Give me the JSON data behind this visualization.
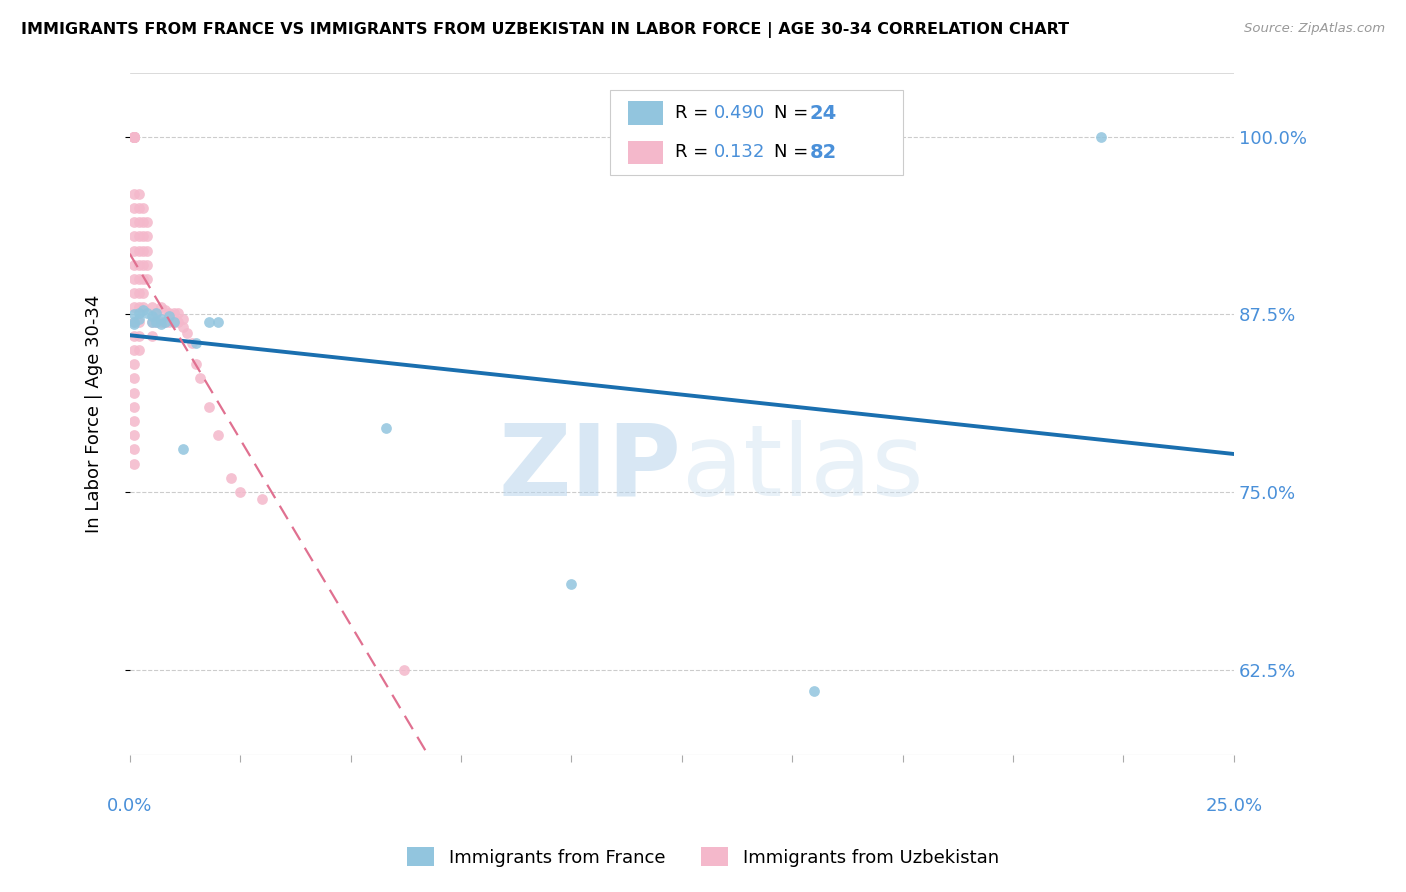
{
  "title": "IMMIGRANTS FROM FRANCE VS IMMIGRANTS FROM UZBEKISTAN IN LABOR FORCE | AGE 30-34 CORRELATION CHART",
  "source": "Source: ZipAtlas.com",
  "ylabel": "In Labor Force | Age 30-34",
  "ytick_vals": [
    0.625,
    0.75,
    0.875,
    1.0
  ],
  "ytick_labels": [
    "62.5%",
    "75.0%",
    "87.5%",
    "100.0%"
  ],
  "xlim": [
    0,
    0.25
  ],
  "ylim": [
    0.565,
    1.045
  ],
  "france_R": 0.49,
  "france_N": 24,
  "uzbekistan_R": 0.132,
  "uzbekistan_N": 82,
  "france_color": "#92c5de",
  "uzbekistan_color": "#f4b8cb",
  "france_line_color": "#1a6faf",
  "uzbekistan_line_color": "#e07090",
  "blue_label_color": "#4a90d9",
  "watermark_color": "#cde4f5",
  "france_x": [
    0.001,
    0.001,
    0.001,
    0.002,
    0.002,
    0.003,
    0.004,
    0.005,
    0.005,
    0.006,
    0.006,
    0.007,
    0.007,
    0.008,
    0.009,
    0.01,
    0.012,
    0.015,
    0.018,
    0.02,
    0.058,
    0.1,
    0.155,
    0.22
  ],
  "france_y": [
    0.875,
    0.87,
    0.868,
    0.876,
    0.872,
    0.878,
    0.876,
    0.874,
    0.87,
    0.876,
    0.87,
    0.868,
    0.872,
    0.87,
    0.874,
    0.87,
    0.78,
    0.855,
    0.87,
    0.87,
    0.795,
    0.685,
    0.61,
    1.0
  ],
  "uzbekistan_x": [
    0.001,
    0.001,
    0.001,
    0.001,
    0.001,
    0.001,
    0.001,
    0.001,
    0.001,
    0.001,
    0.001,
    0.001,
    0.001,
    0.001,
    0.001,
    0.001,
    0.001,
    0.001,
    0.001,
    0.001,
    0.001,
    0.001,
    0.001,
    0.001,
    0.001,
    0.001,
    0.001,
    0.001,
    0.001,
    0.001,
    0.002,
    0.002,
    0.002,
    0.002,
    0.002,
    0.002,
    0.002,
    0.002,
    0.002,
    0.002,
    0.002,
    0.002,
    0.003,
    0.003,
    0.003,
    0.003,
    0.003,
    0.003,
    0.003,
    0.003,
    0.004,
    0.004,
    0.004,
    0.004,
    0.004,
    0.005,
    0.005,
    0.005,
    0.006,
    0.006,
    0.007,
    0.007,
    0.008,
    0.008,
    0.009,
    0.009,
    0.01,
    0.01,
    0.011,
    0.011,
    0.012,
    0.012,
    0.013,
    0.014,
    0.015,
    0.016,
    0.018,
    0.02,
    0.023,
    0.025,
    0.03,
    0.062
  ],
  "uzbekistan_y": [
    1.0,
    1.0,
    1.0,
    1.0,
    1.0,
    1.0,
    1.0,
    1.0,
    1.0,
    1.0,
    0.96,
    0.95,
    0.94,
    0.93,
    0.92,
    0.91,
    0.9,
    0.89,
    0.88,
    0.87,
    0.86,
    0.85,
    0.84,
    0.83,
    0.82,
    0.81,
    0.8,
    0.79,
    0.78,
    0.77,
    0.96,
    0.95,
    0.94,
    0.93,
    0.92,
    0.91,
    0.9,
    0.89,
    0.88,
    0.87,
    0.86,
    0.85,
    0.95,
    0.94,
    0.93,
    0.92,
    0.91,
    0.9,
    0.89,
    0.88,
    0.94,
    0.93,
    0.92,
    0.91,
    0.9,
    0.88,
    0.87,
    0.86,
    0.876,
    0.87,
    0.88,
    0.87,
    0.878,
    0.87,
    0.876,
    0.87,
    0.876,
    0.87,
    0.876,
    0.87,
    0.872,
    0.866,
    0.862,
    0.855,
    0.84,
    0.83,
    0.81,
    0.79,
    0.76,
    0.75,
    0.745,
    0.625
  ]
}
